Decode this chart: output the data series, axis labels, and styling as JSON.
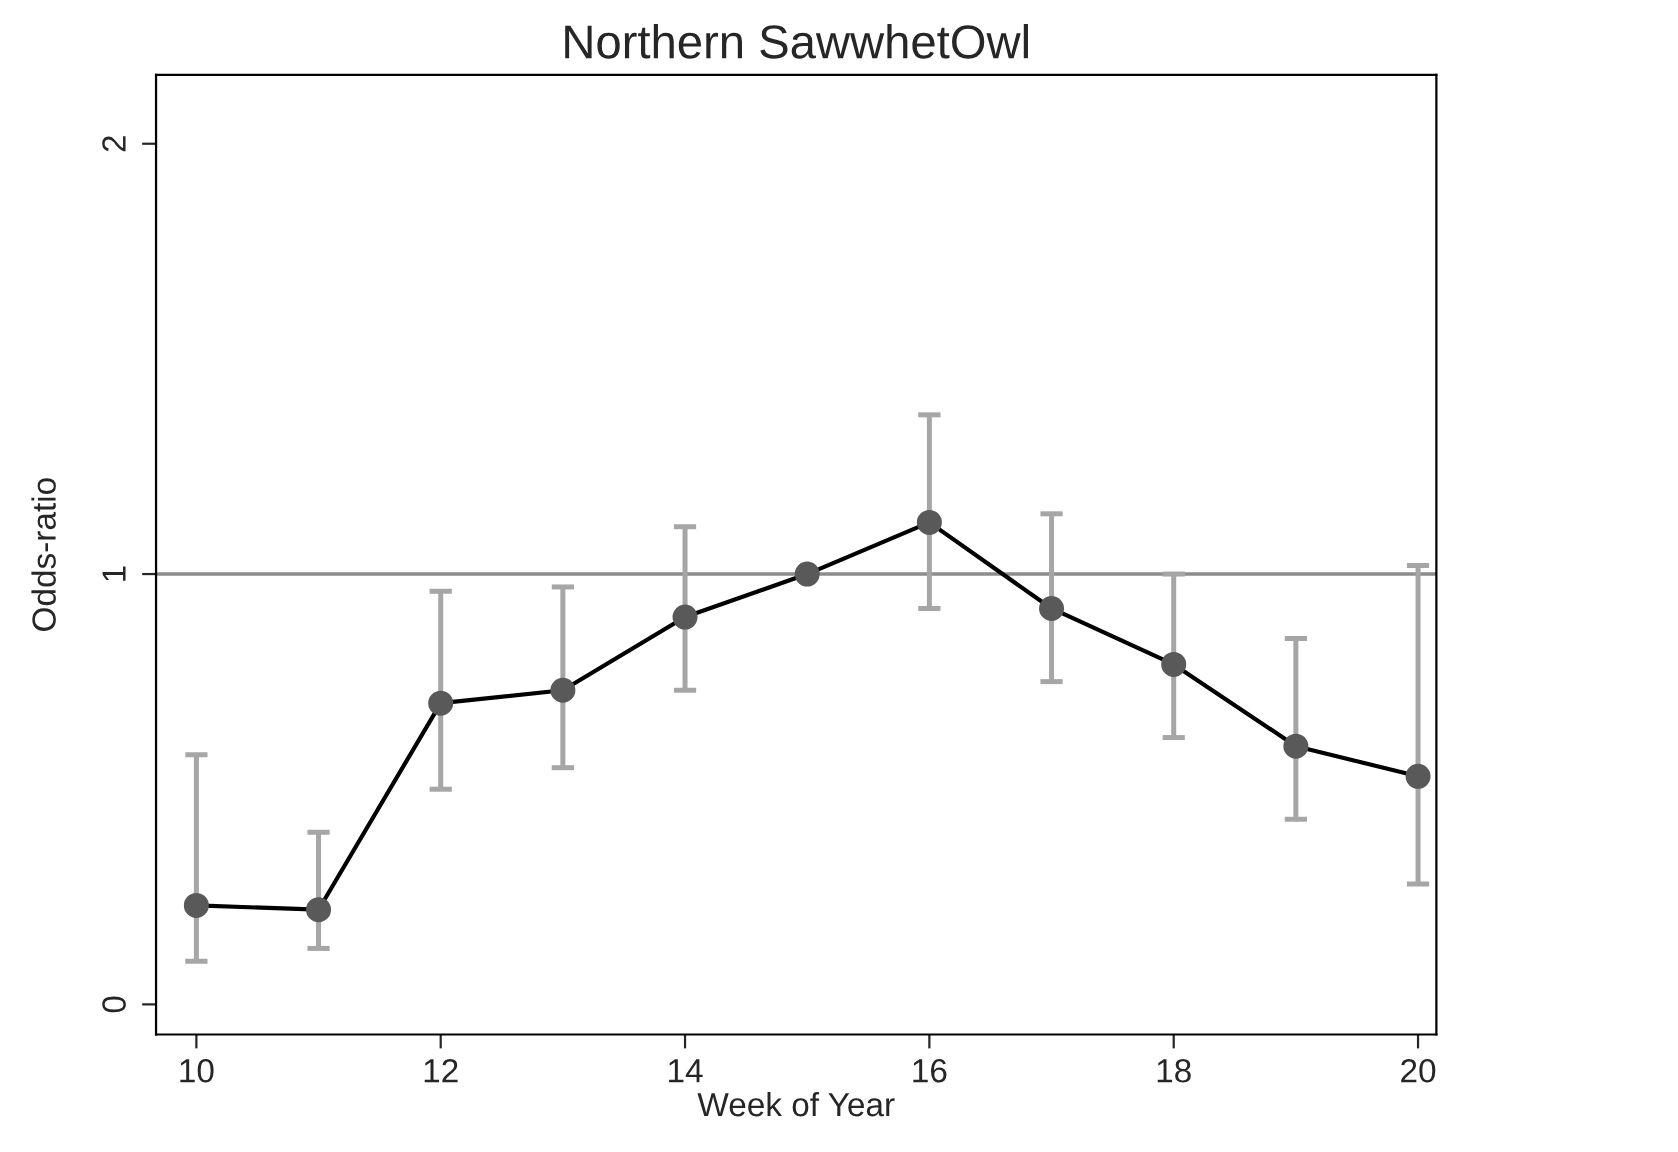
{
  "chart_data": {
    "type": "line",
    "title": "Northern SawwhetOwl",
    "xlabel": "Week of Year",
    "ylabel": "Odds-ratio",
    "x": [
      10,
      11,
      12,
      13,
      14,
      15,
      16,
      17,
      18,
      19,
      20
    ],
    "series": [
      {
        "color": "#000000",
        "values": [
          0.23,
          0.22,
          0.7,
          0.73,
          0.9,
          1.0,
          1.12,
          0.92,
          0.79,
          0.6,
          0.53
        ],
        "errors": [
          [
            0.1,
            0.58
          ],
          [
            0.13,
            0.4
          ],
          [
            0.5,
            0.96
          ],
          [
            0.55,
            0.97
          ],
          [
            0.73,
            1.11
          ],
          null,
          [
            0.92,
            1.37
          ],
          [
            0.75,
            1.14
          ],
          [
            0.62,
            1.0
          ],
          [
            0.43,
            0.85
          ],
          [
            0.28,
            1.02
          ]
        ]
      }
    ],
    "marker": "circle",
    "xlim": [
      9.67,
      20.15
    ],
    "ylim": [
      -0.07,
      2.16
    ],
    "xticks": [
      10,
      12,
      14,
      16,
      18,
      20
    ],
    "yticks": [
      0,
      1,
      2
    ],
    "ref_lines": [
      {
        "axis": "y",
        "value": 1,
        "color": "#8c8c8c"
      }
    ],
    "grid": false,
    "legend": false
  }
}
